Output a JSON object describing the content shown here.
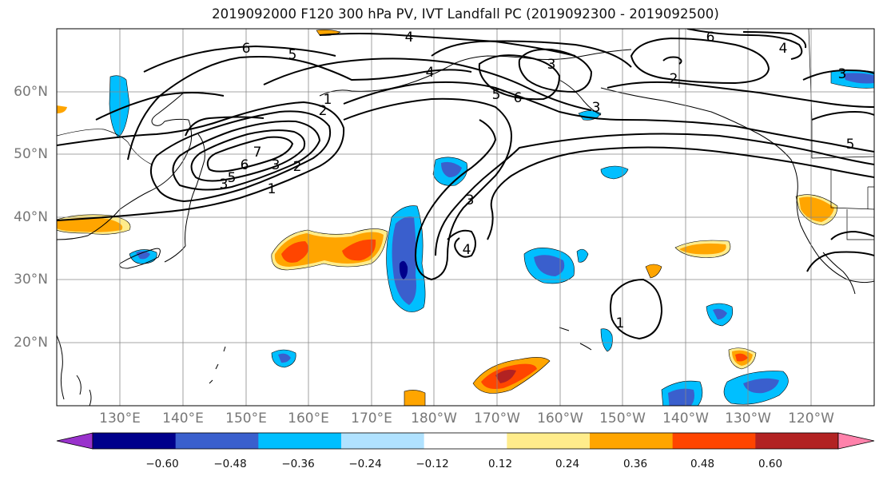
{
  "title": "2019092000 F120 300 hPa PV, IVT Landfall PC (2019092300 - 2019092500)",
  "lon_labels": [
    "130°E",
    "140°E",
    "150°E",
    "160°E",
    "170°E",
    "180°W",
    "170°W",
    "160°W",
    "150°W",
    "140°W",
    "130°W",
    "120°W"
  ],
  "lat_labels": [
    "60°N",
    "50°N",
    "40°N",
    "30°N",
    "20°N"
  ],
  "contour_labels": [
    "6",
    "5",
    "4",
    "4",
    "3",
    "2",
    "6",
    "4",
    "3",
    "5",
    "6",
    "1",
    "2",
    "3",
    "7",
    "6",
    "5",
    "3",
    "2",
    "1",
    "3",
    "4",
    "1",
    "5",
    "3"
  ],
  "colorbar": {
    "ticks": [
      "−0.60",
      "−0.48",
      "−0.36",
      "−0.24",
      "−0.12",
      "0.12",
      "0.24",
      "0.36",
      "0.48",
      "0.60"
    ],
    "colors": [
      "#9932cc",
      "#00008b",
      "#3a5fcd",
      "#00bfff",
      "#b0e2ff",
      "#ffffff",
      "#ffec8b",
      "#ffa500",
      "#ff4500",
      "#b22222",
      "#ff82ab"
    ]
  }
}
